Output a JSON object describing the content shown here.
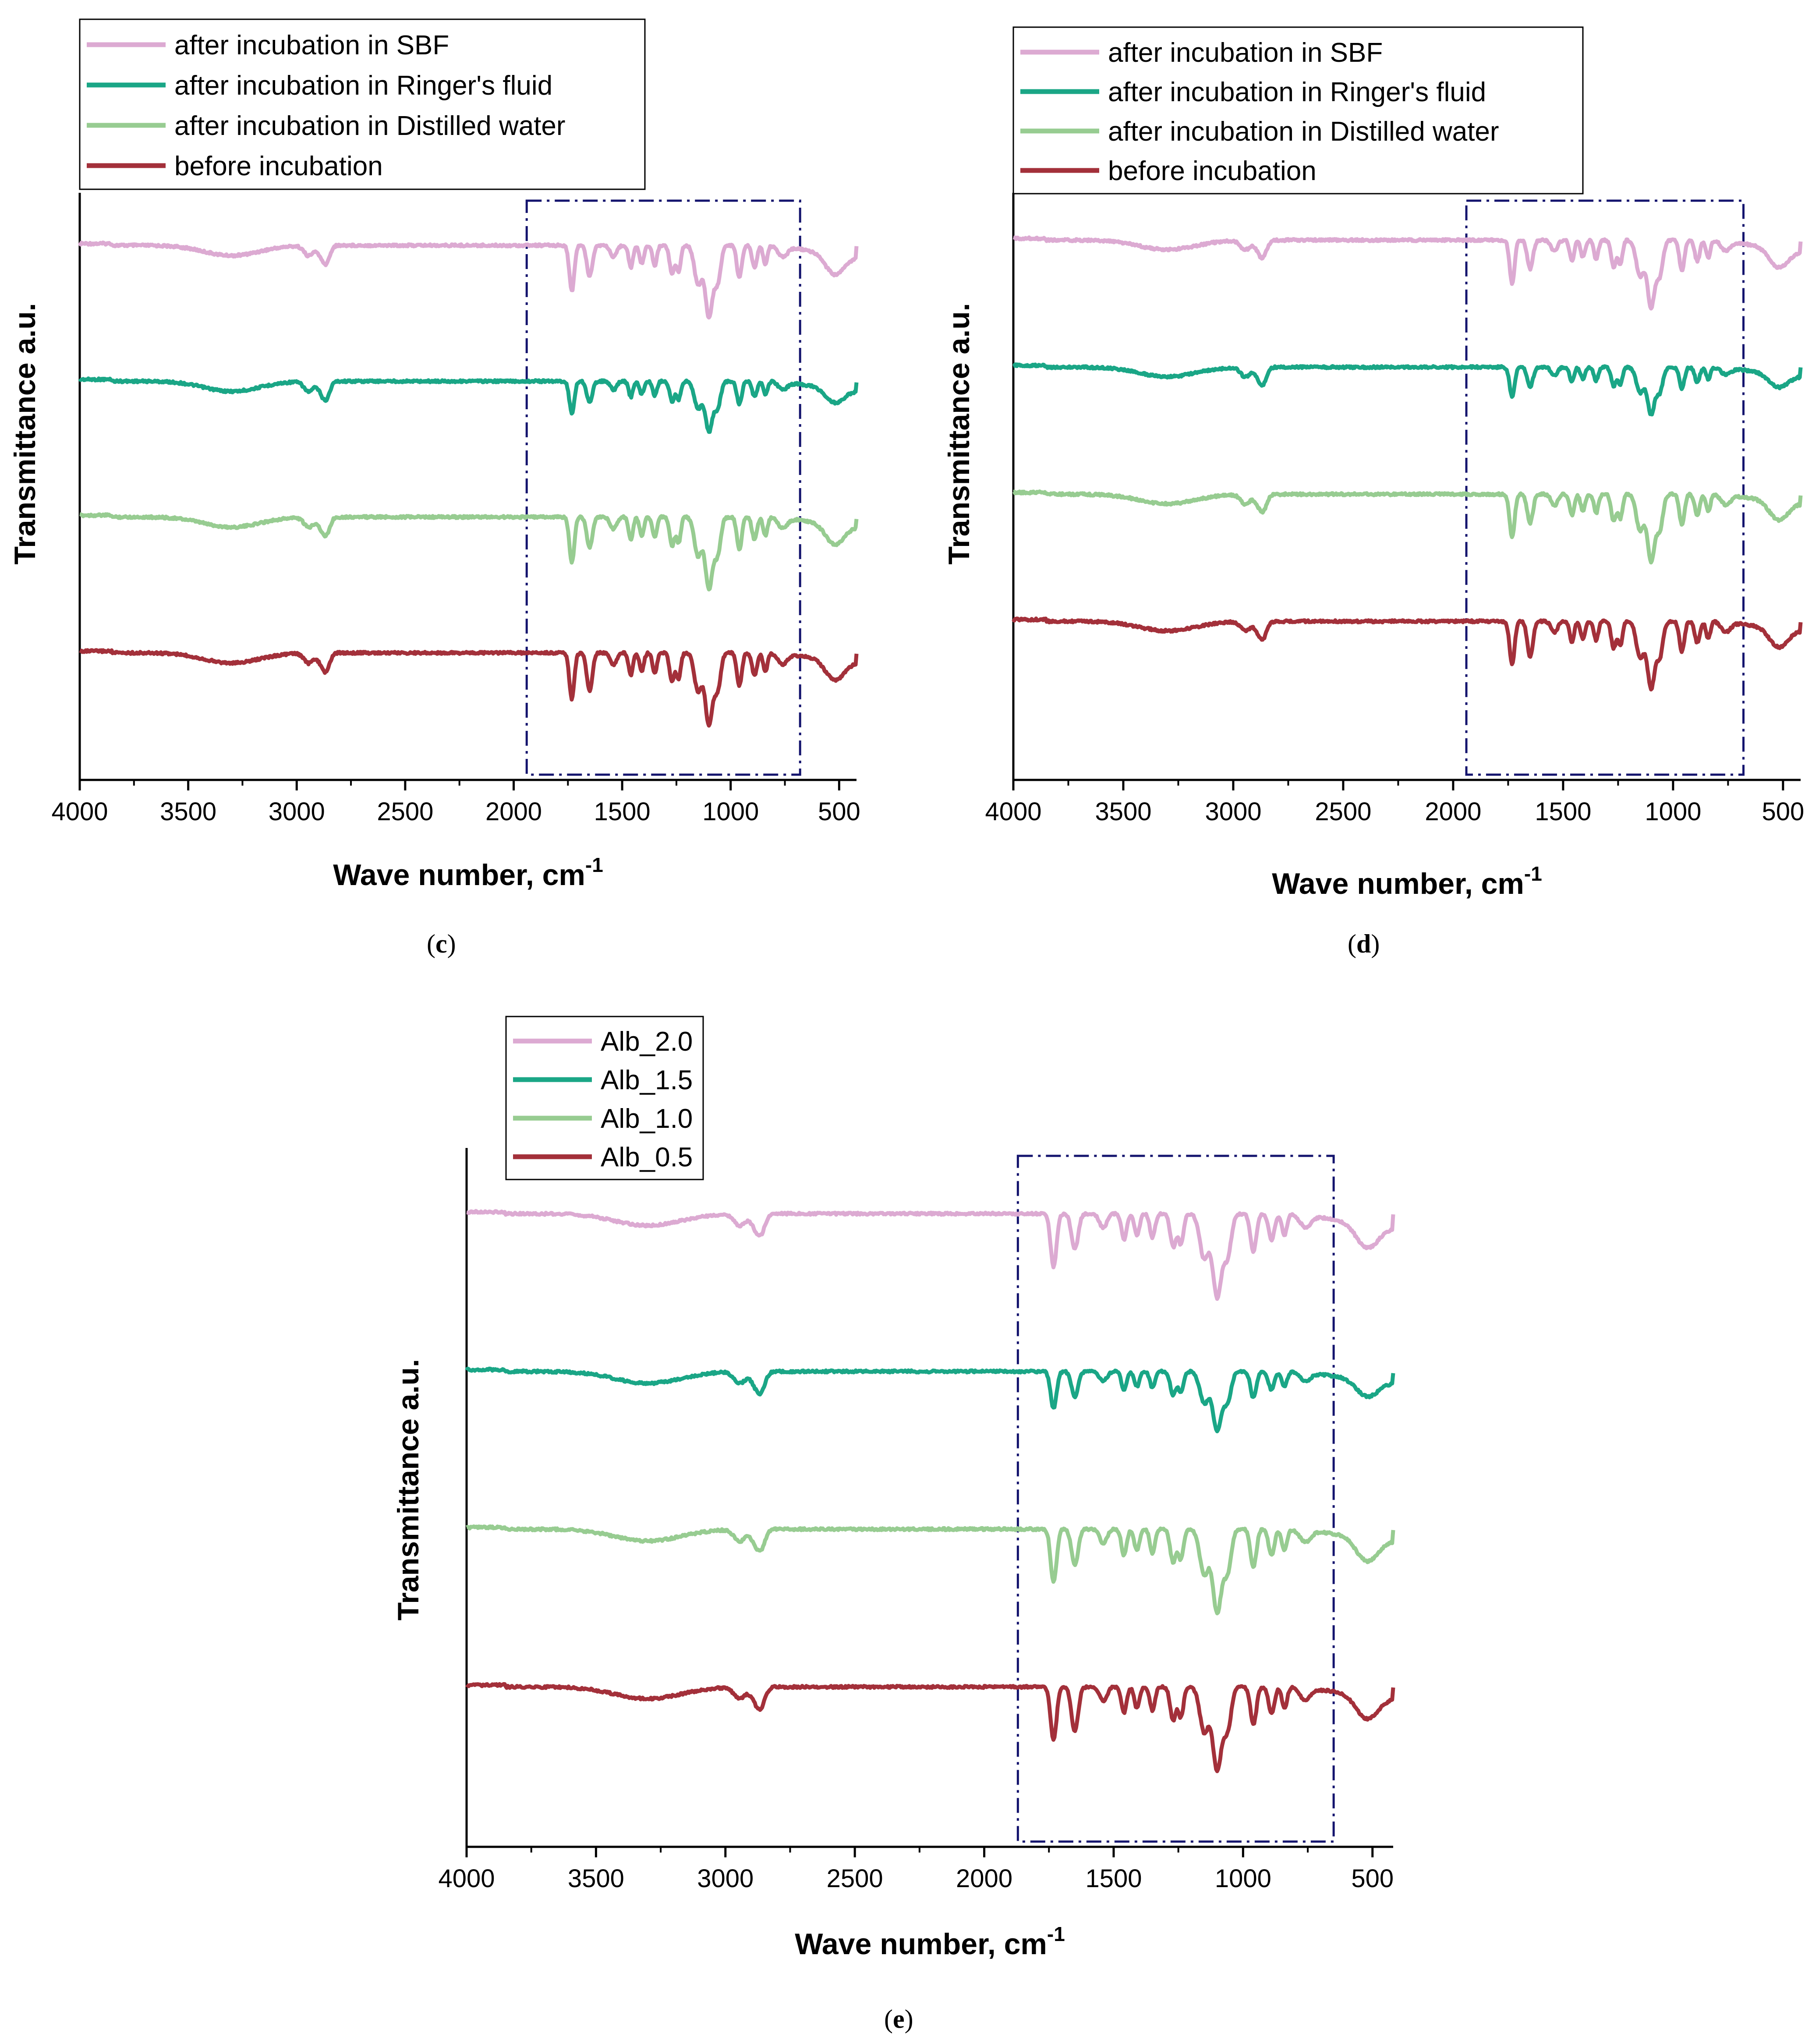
{
  "colors": {
    "sbf": "#dcaad2",
    "ringer": "#1aa686",
    "water": "#97cc91",
    "before": "#a3303a",
    "box": "#14146e",
    "axis": "#000000"
  },
  "captions": {
    "c": {
      "open": "(",
      "letter": "c",
      "close": ")"
    },
    "d": {
      "open": "(",
      "letter": "d",
      "close": ")"
    },
    "e": {
      "open": "(",
      "letter": "e",
      "close": ")"
    }
  },
  "chart_data": [
    {
      "id": "c",
      "type": "line",
      "title": "",
      "xlabel": "Wave number, cm",
      "xlabel_sup": "-1",
      "ylabel": "Transmittance a.u.",
      "xlim": [
        4000,
        420
      ],
      "xticks": [
        4000,
        3500,
        3000,
        2500,
        2000,
        1500,
        1000,
        500
      ],
      "legend_position": "top-left",
      "highlight_region_cm1": [
        1940,
        680
      ],
      "series": [
        {
          "name": "after incubation in SBF",
          "color_key": "sbf",
          "offset": 4
        },
        {
          "name": "after incubation in Ringer's fluid",
          "color_key": "ringer",
          "offset": 3
        },
        {
          "name": "after incubation in Distilled water",
          "color_key": "water",
          "offset": 2
        },
        {
          "name": "before incubation",
          "color_key": "before",
          "offset": 1
        }
      ]
    },
    {
      "id": "d",
      "type": "line",
      "title": "",
      "xlabel": "Wave number, cm",
      "xlabel_sup": "-1",
      "ylabel": "Transmittance a.u.",
      "xlim": [
        4000,
        420
      ],
      "xticks": [
        4000,
        3500,
        3000,
        2500,
        2000,
        1500,
        1000,
        500
      ],
      "legend_position": "top-left",
      "highlight_region_cm1": [
        1940,
        680
      ],
      "series": [
        {
          "name": "after incubation in SBF",
          "color_key": "sbf",
          "offset": 4
        },
        {
          "name": "after incubation in Ringer's fluid",
          "color_key": "ringer",
          "offset": 3
        },
        {
          "name": "after incubation in Distilled water",
          "color_key": "water",
          "offset": 2
        },
        {
          "name": "before incubation",
          "color_key": "before",
          "offset": 1
        }
      ]
    },
    {
      "id": "e",
      "type": "line",
      "title": "",
      "xlabel": "Wave number, cm",
      "xlabel_sup": "-1",
      "ylabel": "Transmittance a.u.",
      "xlim": [
        4000,
        420
      ],
      "xticks": [
        4000,
        3500,
        3000,
        2500,
        2000,
        1500,
        1000,
        500
      ],
      "legend_position": "top-left",
      "highlight_region_cm1": [
        1870,
        650
      ],
      "series": [
        {
          "name": "Alb_2.0",
          "color_key": "sbf",
          "offset": 4
        },
        {
          "name": "Alb_1.5",
          "color_key": "ringer",
          "offset": 3
        },
        {
          "name": "Alb_1.0",
          "color_key": "water",
          "offset": 2
        },
        {
          "name": "Alb_0.5",
          "color_key": "before",
          "offset": 1
        }
      ]
    }
  ]
}
